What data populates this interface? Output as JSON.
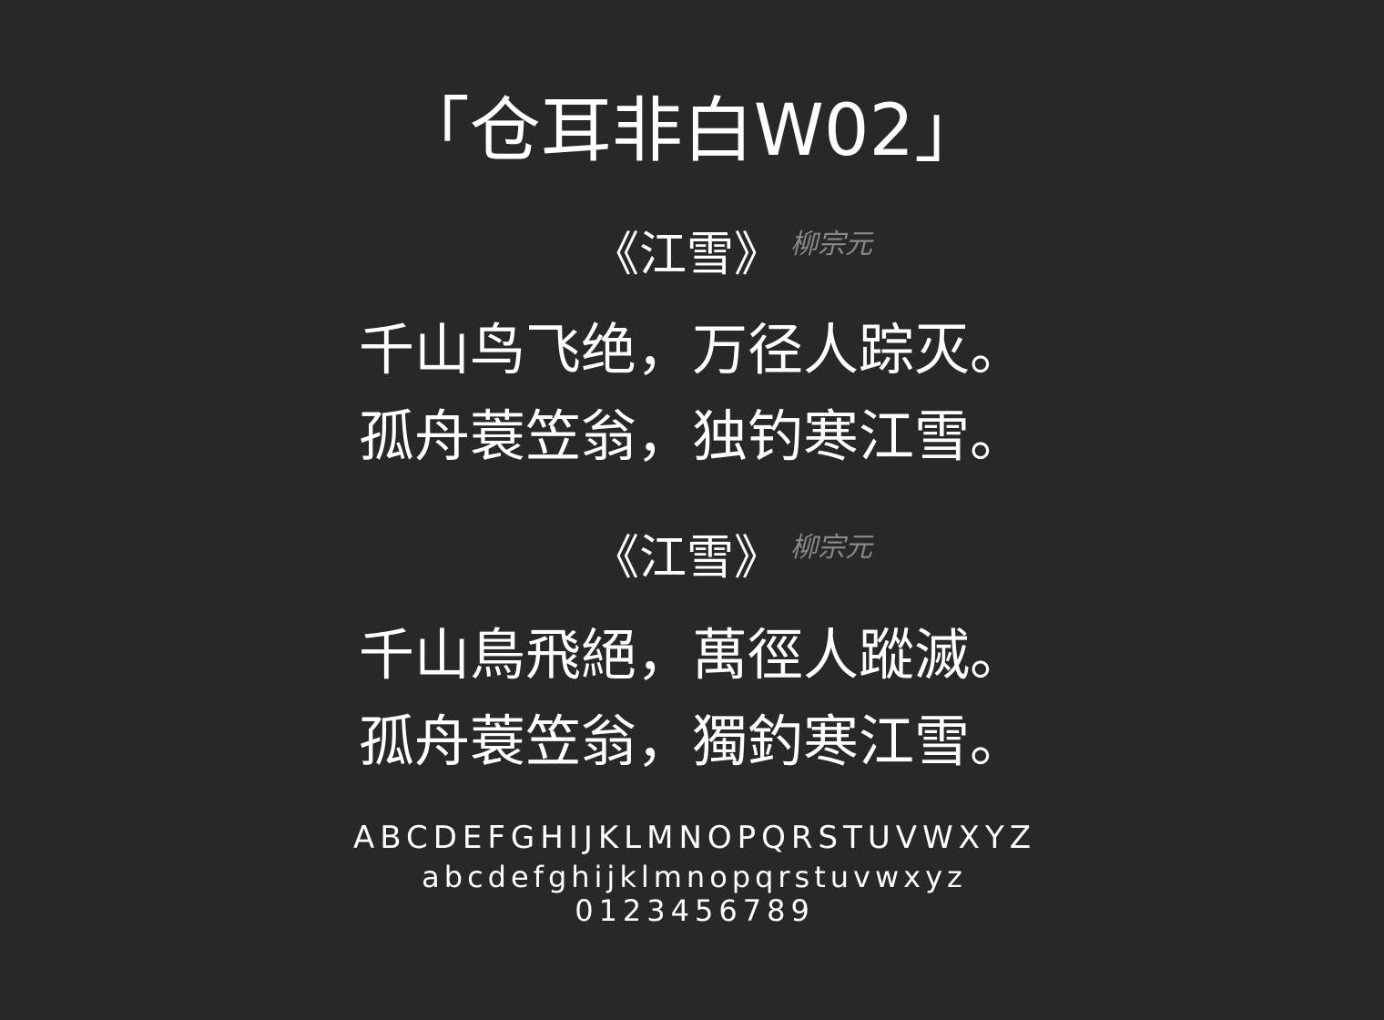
{
  "title": "「仓耳非白W02」",
  "sections": [
    {
      "heading": "《江雪》",
      "author": "柳宗元",
      "lines": [
        "千山鸟飞绝，万径人踪灭。",
        "孤舟蓑笠翁，独钓寒江雪。"
      ]
    },
    {
      "heading": "《江雪》",
      "author": "柳宗元",
      "lines": [
        "千山鳥飛絕，萬徑人蹤滅。",
        "孤舟蓑笠翁，獨釣寒江雪。"
      ]
    }
  ],
  "glyphs": {
    "uppercase": "ABCDEFGHIJKLMNOPQRSTUVWXYZ",
    "lowercase": "abcdefghijklmnopqrstuvwxyz",
    "digits": "0123456789"
  },
  "colors": {
    "background": "#282828",
    "text": "#ffffff",
    "author": "#8a8a8a"
  }
}
